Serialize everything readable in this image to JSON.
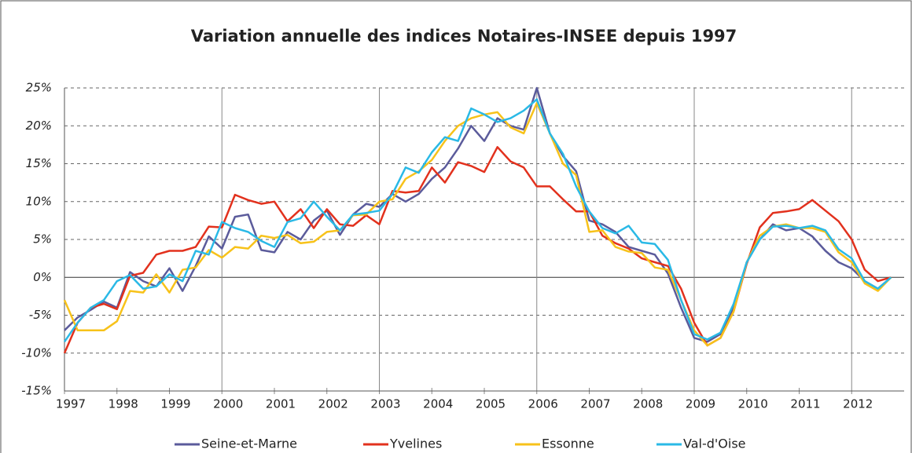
{
  "chart_data": {
    "type": "line",
    "title": "Variation annuelle des indices Notaires-INSEE depuis 1997",
    "x": [
      1997,
      1997.25,
      1997.5,
      1997.75,
      1998,
      1998.25,
      1998.5,
      1998.75,
      1999,
      1999.25,
      1999.5,
      1999.75,
      2000,
      2000.25,
      2000.5,
      2000.75,
      2001,
      2001.25,
      2001.5,
      2001.75,
      2002,
      2002.25,
      2002.5,
      2002.75,
      2003,
      2003.25,
      2003.5,
      2003.75,
      2004,
      2004.25,
      2004.5,
      2004.75,
      2005,
      2005.25,
      2005.5,
      2005.75,
      2006,
      2006.25,
      2006.5,
      2006.75,
      2007,
      2007.25,
      2007.5,
      2007.75,
      2008,
      2008.25,
      2008.5,
      2008.75,
      2009,
      2009.25,
      2009.5,
      2009.75,
      2010,
      2010.25,
      2010.5,
      2010.75,
      2011,
      2011.25,
      2011.5,
      2011.75,
      2012,
      2012.25,
      2012.5,
      2012.75
    ],
    "series": [
      {
        "name": "Seine-et-Marne",
        "color": "#5b5b9b",
        "values": [
          -7,
          -5.3,
          -4.3,
          -3.2,
          -4,
          0.7,
          -0.5,
          -1.2,
          1.2,
          -1.8,
          1.5,
          5.4,
          3.8,
          8,
          8.3,
          3.6,
          3.3,
          6,
          5,
          7.5,
          8.8,
          5.6,
          8.3,
          9.7,
          9.3,
          11,
          10,
          11,
          13,
          14.5,
          17,
          20,
          18,
          21,
          20,
          19.5,
          25,
          19,
          16,
          14,
          7.5,
          7,
          6,
          4,
          3.5,
          3,
          0.5,
          -4,
          -8,
          -8.5,
          -7.5,
          -4,
          2,
          5,
          7,
          6.2,
          6.5,
          5.4,
          3.5,
          2,
          1.2,
          -0.5,
          -1.5,
          0
        ]
      },
      {
        "name": "Yvelines",
        "color": "#e2311d",
        "values": [
          -10,
          -6,
          -4,
          -3.5,
          -4.2,
          0.2,
          0.6,
          3,
          3.5,
          3.5,
          4,
          6.7,
          6.6,
          10.9,
          10.2,
          9.7,
          10,
          7.4,
          9,
          6.5,
          9,
          7,
          6.8,
          8.2,
          7,
          11.4,
          11.2,
          11.4,
          14.5,
          12.5,
          15.2,
          14.7,
          13.9,
          17.2,
          15.3,
          14.5,
          12,
          12,
          10.3,
          8.7,
          8.7,
          5.5,
          4.5,
          3.8,
          2.5,
          2,
          1.5,
          -1.5,
          -6,
          -9,
          -8,
          -4.5,
          1.8,
          6.6,
          8.5,
          8.7,
          9,
          10.2,
          8.8,
          7.4,
          5,
          1,
          -0.5,
          0
        ]
      },
      {
        "name": "Essonne",
        "color": "#f7c21a",
        "values": [
          -3,
          -7,
          -7,
          -7,
          -5.8,
          -1.8,
          -2,
          0.4,
          -2,
          1,
          1.3,
          3.6,
          2.6,
          4,
          3.8,
          5.5,
          5.2,
          5.6,
          4.5,
          4.7,
          6,
          6.2,
          8.2,
          8.3,
          10,
          10.3,
          13,
          14,
          15.5,
          18,
          20,
          21,
          21.5,
          21.8,
          19.8,
          19,
          23,
          19,
          15,
          13.5,
          6,
          6.2,
          4,
          3.4,
          3.2,
          1.3,
          1,
          -3,
          -7,
          -9,
          -8,
          -4.5,
          2,
          5.5,
          6.7,
          7,
          6.5,
          6.5,
          6,
          3.3,
          2,
          -0.8,
          -1.8,
          0
        ]
      },
      {
        "name": "Val-d'Oise",
        "color": "#2ab9e6",
        "values": [
          -8.5,
          -6,
          -4,
          -3,
          -0.5,
          0.3,
          -1.5,
          -1.2,
          0.4,
          -0.5,
          3.5,
          3,
          7.3,
          6.5,
          6,
          4.8,
          4,
          7.3,
          7.8,
          10,
          8,
          6.2,
          8.3,
          8.5,
          8.8,
          11,
          14.5,
          13.8,
          16.5,
          18.5,
          18,
          22.3,
          21.5,
          20.5,
          21,
          22,
          23.5,
          19,
          16.3,
          12,
          8.7,
          6.5,
          5.8,
          6.8,
          4.6,
          4.4,
          2.3,
          -3,
          -7.5,
          -8.2,
          -7.3,
          -3.5,
          2,
          5,
          6.7,
          6.8,
          6.5,
          6.8,
          6.2,
          3.7,
          2.5,
          -0.5,
          -1.5,
          0
        ]
      }
    ],
    "xlim": [
      1997,
      2013
    ],
    "xticks": [
      1997,
      1998,
      1999,
      2000,
      2001,
      2002,
      2003,
      2004,
      2005,
      2006,
      2007,
      2008,
      2009,
      2010,
      2011,
      2012
    ],
    "ylim": [
      -15,
      25
    ],
    "yticks": [
      {
        "value": -15,
        "label": "-15%"
      },
      {
        "value": -10,
        "label": "-10%"
      },
      {
        "value": -5,
        "label": "-5%"
      },
      {
        "value": 0,
        "label": "0%"
      },
      {
        "value": 5,
        "label": "5%"
      },
      {
        "value": 10,
        "label": "10%"
      },
      {
        "value": 15,
        "label": "15%"
      },
      {
        "value": 20,
        "label": "20%"
      },
      {
        "value": 25,
        "label": "25%"
      }
    ],
    "grid": true,
    "legend": "bottom"
  }
}
